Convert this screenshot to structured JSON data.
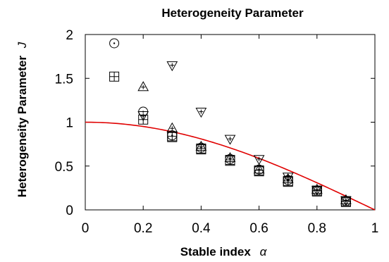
{
  "chart_data": {
    "type": "scatter",
    "title": "Heterogeneity Parameter",
    "xlabel": "Stable index",
    "xlabel_symbol": "α",
    "ylabel": "Heterogeneity Parameter",
    "ylabel_symbol": "J",
    "xlim": [
      0,
      1
    ],
    "ylim": [
      0,
      2
    ],
    "x_ticks": [
      "0",
      "0.2",
      "0.4",
      "0.6",
      "0.8",
      "1"
    ],
    "y_ticks": [
      "0",
      "0.5",
      "1",
      "1.5",
      "2"
    ],
    "grid": false,
    "legend": false,
    "line_color": "#e00000",
    "series": [
      {
        "marker": "circle-dot",
        "points": [
          [
            0.1,
            1.9
          ],
          [
            0.2,
            1.12
          ],
          [
            0.3,
            0.85
          ],
          [
            0.4,
            0.71
          ],
          [
            0.5,
            0.58
          ],
          [
            0.6,
            0.46
          ],
          [
            0.7,
            0.34
          ],
          [
            0.8,
            0.22
          ],
          [
            0.9,
            0.1
          ]
        ]
      },
      {
        "marker": "square-plus",
        "points": [
          [
            0.1,
            1.52
          ],
          [
            0.2,
            1.03
          ],
          [
            0.3,
            0.84
          ],
          [
            0.4,
            0.7
          ],
          [
            0.5,
            0.57
          ],
          [
            0.6,
            0.45
          ],
          [
            0.7,
            0.33
          ],
          [
            0.8,
            0.22
          ],
          [
            0.9,
            0.1
          ]
        ]
      },
      {
        "marker": "triangle-up-plus",
        "points": [
          [
            0.2,
            1.4
          ],
          [
            0.3,
            0.93
          ],
          [
            0.4,
            0.72
          ],
          [
            0.5,
            0.59
          ],
          [
            0.6,
            0.46
          ],
          [
            0.7,
            0.35
          ],
          [
            0.8,
            0.23
          ],
          [
            0.9,
            0.11
          ]
        ]
      },
      {
        "marker": "triangle-down-plus",
        "points": [
          [
            0.2,
            1.08
          ],
          [
            0.3,
            1.65
          ],
          [
            0.4,
            1.12
          ],
          [
            0.5,
            0.81
          ],
          [
            0.6,
            0.58
          ],
          [
            0.7,
            0.38
          ],
          [
            0.8,
            0.23
          ],
          [
            0.9,
            0.11
          ]
        ]
      },
      {
        "marker": "square",
        "points": [
          [
            0.3,
            0.83
          ],
          [
            0.4,
            0.69
          ],
          [
            0.5,
            0.56
          ],
          [
            0.6,
            0.44
          ],
          [
            0.7,
            0.32
          ],
          [
            0.8,
            0.21
          ],
          [
            0.9,
            0.09
          ]
        ]
      }
    ],
    "curve": {
      "formula": "cos(pi*alpha/2)",
      "x_range": [
        0,
        1
      ]
    }
  }
}
